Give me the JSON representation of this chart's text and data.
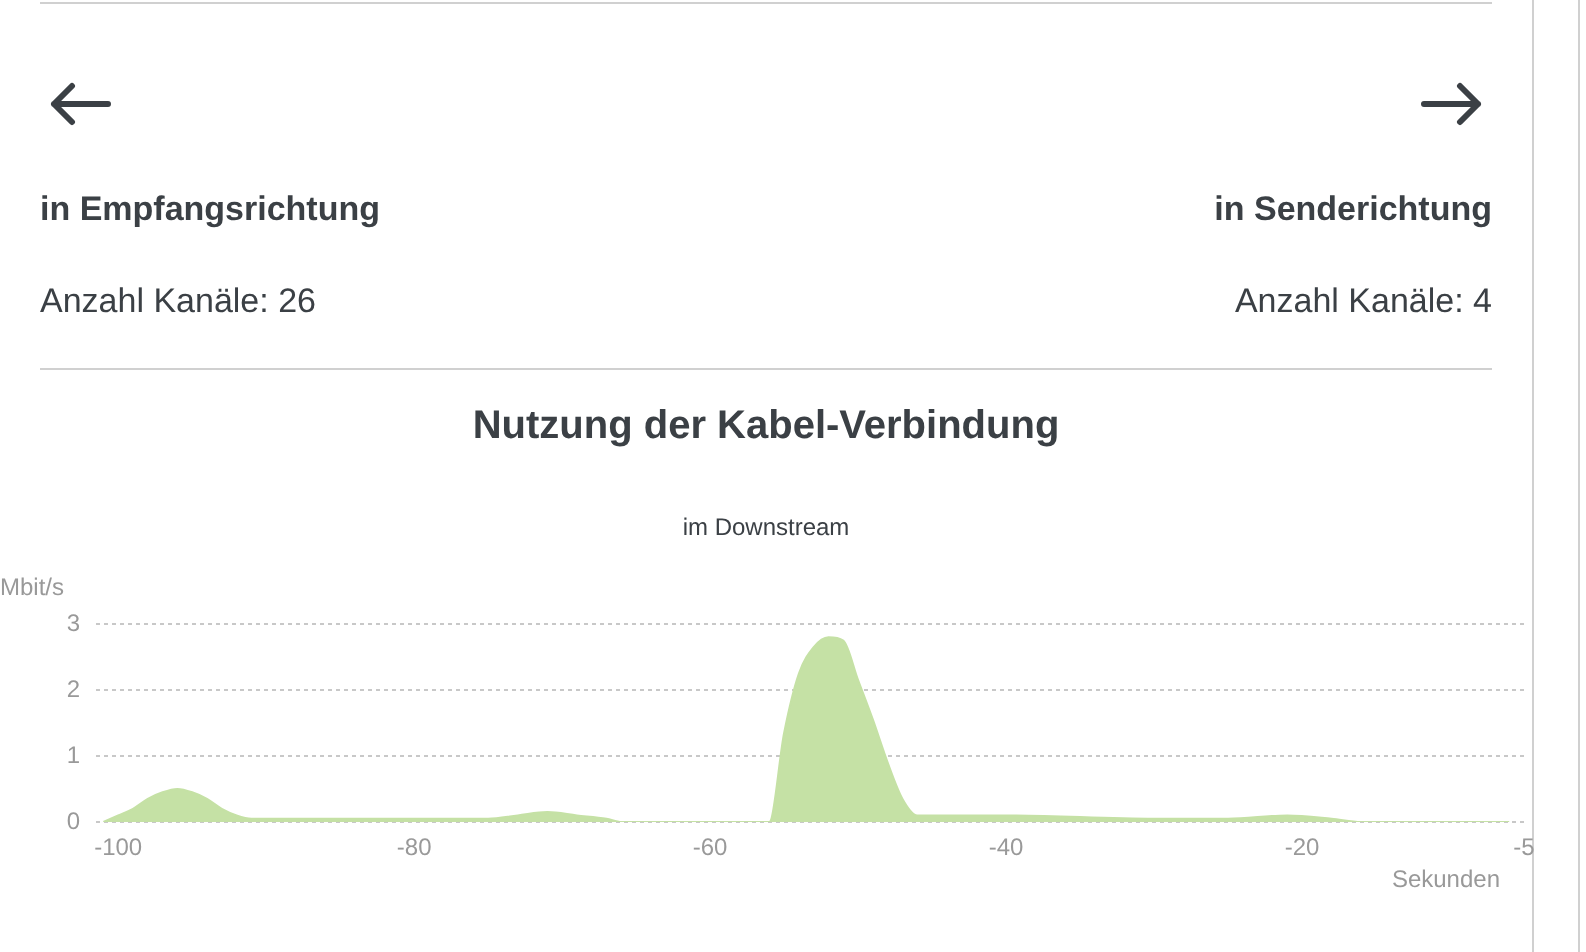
{
  "chart_data": [
    {
      "type": "other",
      "annotations": [
        "in Empfangsrichtung",
        "Anzahl Kanäle: 26",
        "in Senderichtung",
        "Anzahl Kanäle: 4"
      ]
    },
    {
      "type": "area",
      "title": "Nutzung der Kabel-Verbindung",
      "subtitle": "im Downstream",
      "xlabel": "Sekunden",
      "ylabel": "Mbit/s",
      "x": [
        -101,
        -100,
        -99,
        -98,
        -97,
        -96,
        -95,
        -94,
        -93,
        -92,
        -91,
        -85,
        -80,
        -76,
        -75,
        -73,
        -71,
        -69,
        -67,
        -66,
        -60,
        -56,
        -55,
        -54,
        -53,
        -52,
        -51,
        -50,
        -49,
        -48,
        -47,
        -46,
        -40,
        -30,
        -25,
        -21,
        -18,
        -16,
        -6
      ],
      "values": [
        0,
        0.1,
        0.2,
        0.35,
        0.45,
        0.5,
        0.45,
        0.35,
        0.2,
        0.1,
        0.05,
        0.05,
        0.05,
        0.05,
        0.05,
        0.1,
        0.15,
        0.1,
        0.05,
        0,
        0,
        0,
        1.35,
        2.25,
        2.65,
        2.8,
        2.75,
        2.15,
        1.55,
        0.9,
        0.35,
        0.1,
        0.1,
        0.05,
        0.05,
        0.1,
        0.05,
        0,
        0
      ],
      "color": "#c5e1a5",
      "xlim": [
        -101.5,
        -5
      ],
      "xticks": [
        -100,
        -80,
        -60,
        -40,
        -20,
        -5
      ],
      "ylim": [
        0,
        3
      ],
      "yticks": [
        0,
        1,
        2,
        3
      ],
      "grid": "y",
      "marker": "none"
    }
  ]
}
